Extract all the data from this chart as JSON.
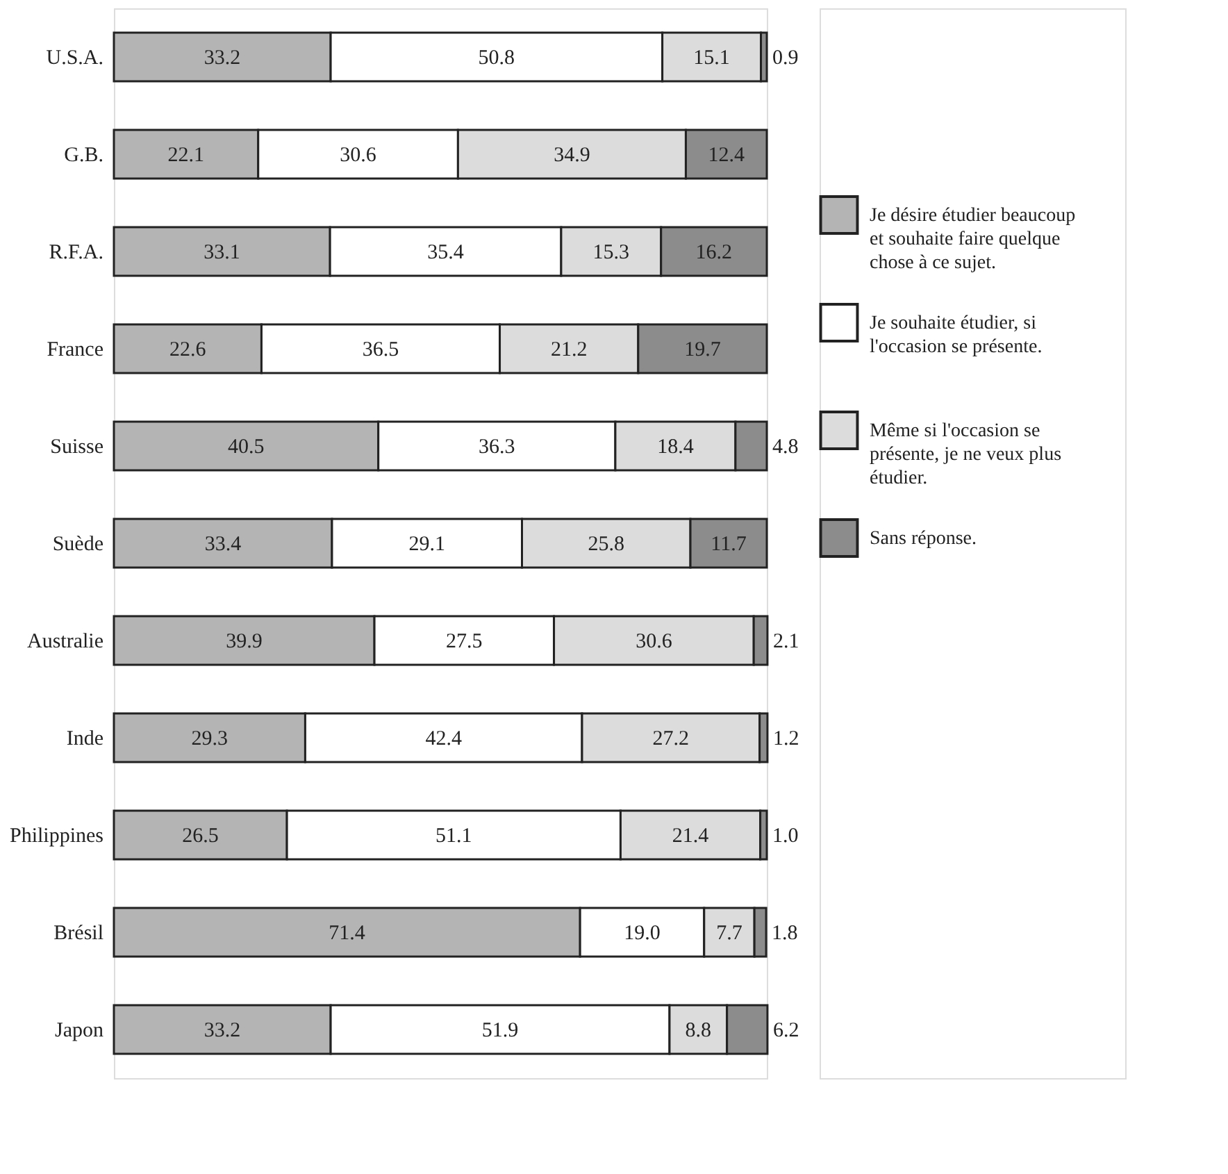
{
  "chart_data": {
    "type": "bar",
    "orientation": "horizontal",
    "stacked": true,
    "legend": "right",
    "tick_labels": "y",
    "grid": false,
    "xlim": [
      0,
      100
    ],
    "categories": [
      "U.S.A.",
      "G.B.",
      "R.F.A.",
      "France",
      "Suisse",
      "Suède",
      "Australie",
      "Inde",
      "Philippines",
      "Brésil",
      "Japon"
    ],
    "series": [
      {
        "name": "Je désire étudier beaucoup et souhaite faire quelque chose à ce sujet.",
        "color": "#b4b4b4",
        "values": [
          33.2,
          22.1,
          33.1,
          22.6,
          40.5,
          33.4,
          39.9,
          29.3,
          26.5,
          71.4,
          33.2
        ],
        "value_labels": [
          "33.2",
          "22.1",
          "33.1",
          "22.6",
          "40.5",
          "33.4",
          "39.9",
          "29.3",
          "26.5",
          "71.4",
          "33.2"
        ]
      },
      {
        "name": "Je souhaite étudier, si l'occasion se présente.",
        "color": "#ffffff",
        "values": [
          50.8,
          30.6,
          35.4,
          36.5,
          36.3,
          29.1,
          27.5,
          42.4,
          51.1,
          19.0,
          51.9
        ],
        "value_labels": [
          "50.8",
          "30.6",
          "35.4",
          "36.5",
          "36.3",
          "29.1",
          "27.5",
          "42.4",
          "51.1",
          "19.0",
          "51.9"
        ]
      },
      {
        "name": "Même si l'occasion se présente, je ne veux plus étudier.",
        "color": "#dcdcdc",
        "values": [
          15.1,
          34.9,
          15.3,
          21.2,
          18.4,
          25.8,
          30.6,
          27.2,
          21.4,
          7.7,
          8.8
        ],
        "value_labels": [
          "15.1",
          "34.9",
          "15.3",
          "21.2",
          "18.4",
          "25.8",
          "30.6",
          "27.2",
          "21.4",
          "7.7",
          "8.8"
        ]
      },
      {
        "name": "Sans réponse.",
        "color": "#8c8c8c",
        "values": [
          0.9,
          12.4,
          16.2,
          19.7,
          4.8,
          11.7,
          2.1,
          1.2,
          1.0,
          1.8,
          6.2
        ],
        "value_labels": [
          "0.9",
          "12.4",
          "16.2",
          "19.7",
          "4.8",
          "11.7",
          "2.1",
          "1.2",
          "1.0",
          "1.8",
          "6.2"
        ]
      }
    ]
  }
}
